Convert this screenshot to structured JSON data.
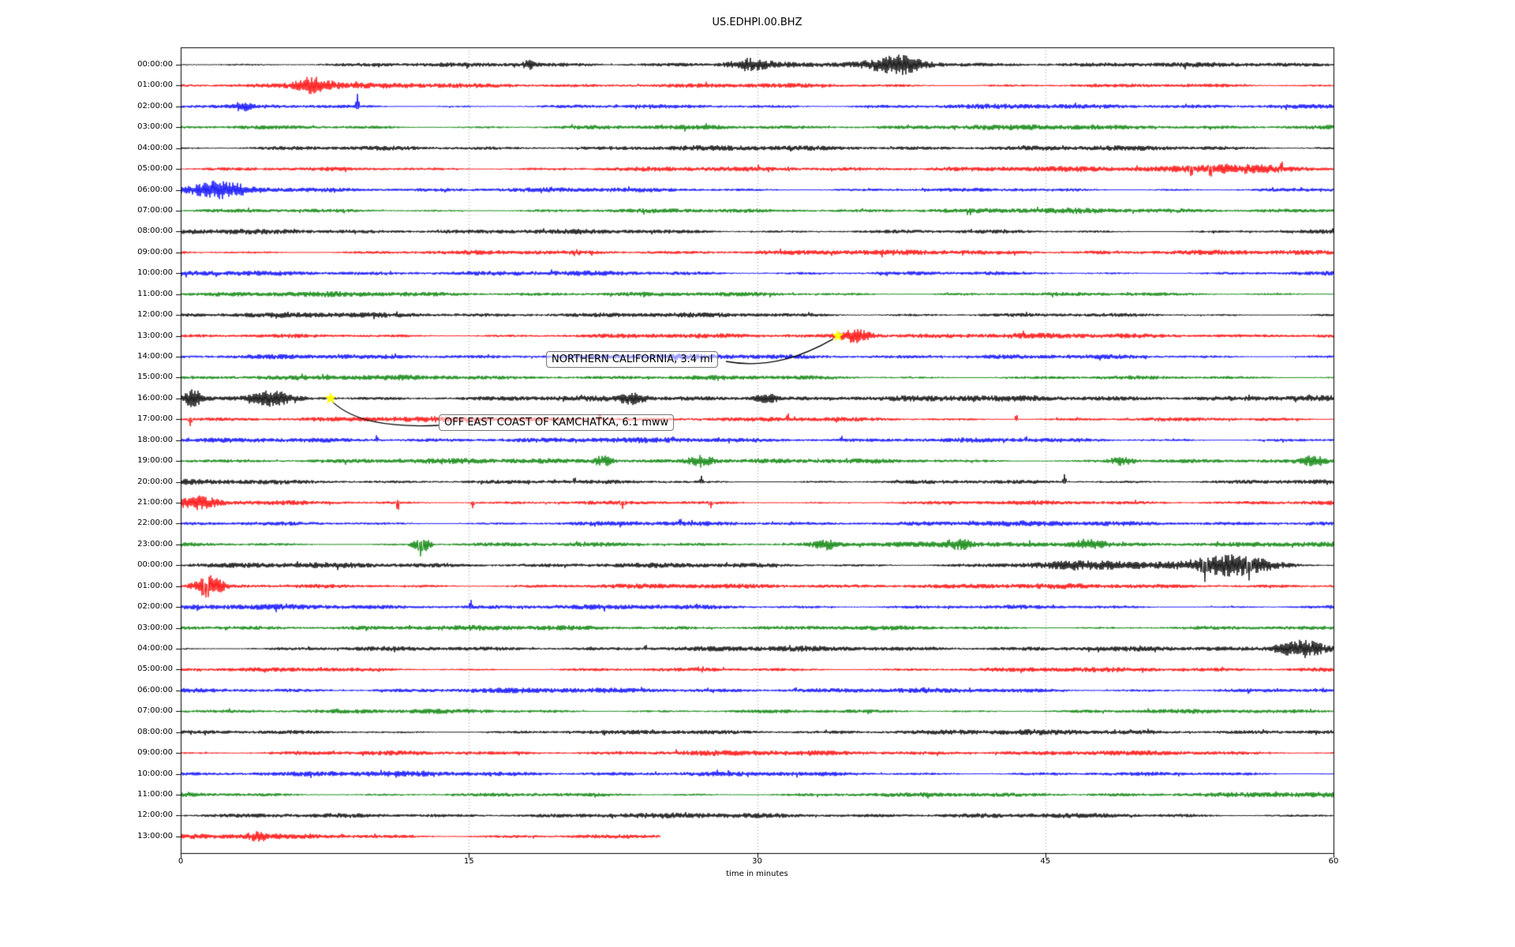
{
  "chart_data": {
    "type": "line",
    "subtype": "seismogram-dayplot",
    "title": "US.EDHPI.00.BHZ",
    "xlabel": "time in minutes",
    "x_ticks": [
      0,
      15,
      30,
      45,
      60
    ],
    "x_tick_labels": [
      "0",
      "15",
      "30",
      "45",
      "60"
    ],
    "x_range_minutes": [
      0,
      60
    ],
    "gridlines_minutes": [
      15,
      30,
      45
    ],
    "grid_style": "dotted-vertical",
    "trace_colors_cycle": [
      "#000000",
      "#ff0000",
      "#0000ff",
      "#008000"
    ],
    "rows": [
      "00:00:00",
      "01:00:00",
      "02:00:00",
      "03:00:00",
      "04:00:00",
      "05:00:00",
      "06:00:00",
      "07:00:00",
      "08:00:00",
      "09:00:00",
      "10:00:00",
      "11:00:00",
      "12:00:00",
      "13:00:00",
      "14:00:00",
      "15:00:00",
      "16:00:00",
      "17:00:00",
      "18:00:00",
      "19:00:00",
      "20:00:00",
      "21:00:00",
      "22:00:00",
      "23:00:00",
      "00:00:00",
      "01:00:00",
      "02:00:00",
      "03:00:00",
      "04:00:00",
      "05:00:00",
      "06:00:00",
      "07:00:00",
      "08:00:00",
      "09:00:00",
      "10:00:00",
      "11:00:00",
      "12:00:00",
      "13:00:00"
    ],
    "last_row_end_minute": 25,
    "events": [
      {
        "label": "NORTHERN CALIFORNIA, 3.4 ml",
        "row_index": 13,
        "row_time": "13:00:00",
        "minute": 34.2,
        "marker": "yellow-star"
      },
      {
        "label": "OFF EAST COAST OF KAMCHATKA, 6.1 mww",
        "row_index": 16,
        "row_time": "16:00:00",
        "minute": 7.8,
        "marker": "yellow-star"
      }
    ],
    "bursts": [
      {
        "row": 0,
        "start": 17.8,
        "end": 18.4,
        "amp": 5
      },
      {
        "row": 0,
        "start": 28.6,
        "end": 30.6,
        "amp": 6
      },
      {
        "row": 0,
        "start": 36.0,
        "end": 38.8,
        "amp": 10
      },
      {
        "row": 1,
        "start": 6.0,
        "end": 8.0,
        "amp": 9
      },
      {
        "row": 2,
        "start": 2.9,
        "end": 3.6,
        "amp": 5
      },
      {
        "row": 5,
        "start": 52.3,
        "end": 57.7,
        "amp": 5
      },
      {
        "row": 6,
        "start": 0.5,
        "end": 3.4,
        "amp": 8
      },
      {
        "row": 13,
        "start": 34.3,
        "end": 36.0,
        "amp": 8
      },
      {
        "row": 16,
        "start": 0.3,
        "end": 1.0,
        "amp": 11
      },
      {
        "row": 16,
        "start": 3.8,
        "end": 5.8,
        "amp": 8
      },
      {
        "row": 16,
        "start": 8.0,
        "end": 60.0,
        "amp": 1.2
      },
      {
        "row": 16,
        "start": 22.8,
        "end": 24.2,
        "amp": 6
      },
      {
        "row": 16,
        "start": 29.8,
        "end": 31.2,
        "amp": 5
      },
      {
        "row": 19,
        "start": 21.5,
        "end": 22.5,
        "amp": 6
      },
      {
        "row": 19,
        "start": 26.4,
        "end": 27.8,
        "amp": 7
      },
      {
        "row": 19,
        "start": 48.3,
        "end": 49.7,
        "amp": 5
      },
      {
        "row": 19,
        "start": 58.3,
        "end": 59.7,
        "amp": 6
      },
      {
        "row": 21,
        "start": 0.0,
        "end": 1.8,
        "amp": 7
      },
      {
        "row": 23,
        "start": 12.1,
        "end": 13.0,
        "amp": 10
      },
      {
        "row": 23,
        "start": 33.0,
        "end": 34.2,
        "amp": 5
      },
      {
        "row": 23,
        "start": 40.0,
        "end": 41.2,
        "amp": 5
      },
      {
        "row": 23,
        "start": 46.3,
        "end": 48.2,
        "amp": 6
      },
      {
        "row": 24,
        "start": 44.0,
        "end": 52.0,
        "amp": 4
      },
      {
        "row": 24,
        "start": 52.6,
        "end": 56.8,
        "amp": 14
      },
      {
        "row": 25,
        "start": 0.7,
        "end": 2.2,
        "amp": 12
      },
      {
        "row": 28,
        "start": 57.0,
        "end": 59.6,
        "amp": 11
      },
      {
        "row": 37,
        "start": 3.5,
        "end": 4.5,
        "amp": 4
      }
    ],
    "spikes": [
      {
        "row": 2,
        "minute": 9.2,
        "amp": 16,
        "dir": 1
      },
      {
        "row": 5,
        "minute": 52.6,
        "amp": 12,
        "dir": -1
      },
      {
        "row": 5,
        "minute": 53.6,
        "amp": 13,
        "dir": -1
      },
      {
        "row": 5,
        "minute": 57.3,
        "amp": 12,
        "dir": 1
      },
      {
        "row": 7,
        "minute": 44.6,
        "amp": 5,
        "dir": 1
      },
      {
        "row": 12,
        "minute": 32.7,
        "amp": 4,
        "dir": 1
      },
      {
        "row": 17,
        "minute": 0.5,
        "amp": 9,
        "dir": -1
      },
      {
        "row": 17,
        "minute": 21.8,
        "amp": 8,
        "dir": 1
      },
      {
        "row": 17,
        "minute": 31.6,
        "amp": 9,
        "dir": 1
      },
      {
        "row": 17,
        "minute": 43.5,
        "amp": 7,
        "dir": 1
      },
      {
        "row": 18,
        "minute": 10.2,
        "amp": 7,
        "dir": 1
      },
      {
        "row": 18,
        "minute": 25.6,
        "amp": 6,
        "dir": 1
      },
      {
        "row": 18,
        "minute": 34.4,
        "amp": 6,
        "dir": 1
      },
      {
        "row": 18,
        "minute": 44.0,
        "amp": 6,
        "dir": 1
      },
      {
        "row": 20,
        "minute": 20.5,
        "amp": 7,
        "dir": 1
      },
      {
        "row": 20,
        "minute": 27.1,
        "amp": 8,
        "dir": 1
      },
      {
        "row": 20,
        "minute": 46.0,
        "amp": 10,
        "dir": 1
      },
      {
        "row": 21,
        "minute": 11.3,
        "amp": 12,
        "dir": -1
      },
      {
        "row": 21,
        "minute": 15.2,
        "amp": 7,
        "dir": -1
      },
      {
        "row": 21,
        "minute": 23.0,
        "amp": 8,
        "dir": -1
      },
      {
        "row": 21,
        "minute": 27.6,
        "amp": 7,
        "dir": -1
      },
      {
        "row": 22,
        "minute": 26.0,
        "amp": 8,
        "dir": 1
      },
      {
        "row": 23,
        "minute": 12.5,
        "amp": 17,
        "dir": -1
      },
      {
        "row": 24,
        "minute": 53.3,
        "amp": 22,
        "dir": -1
      },
      {
        "row": 24,
        "minute": 55.6,
        "amp": 20,
        "dir": -1
      },
      {
        "row": 25,
        "minute": 1.3,
        "amp": 16,
        "dir": -1
      },
      {
        "row": 26,
        "minute": 15.1,
        "amp": 10,
        "dir": 1
      },
      {
        "row": 28,
        "minute": 24.2,
        "amp": 6,
        "dir": 1
      },
      {
        "row": 30,
        "minute": 32.0,
        "amp": 5,
        "dir": 1
      },
      {
        "row": 33,
        "minute": 25.8,
        "amp": 5,
        "dir": 1
      }
    ]
  },
  "colors": {
    "grid": "#999999",
    "axis": "#000000",
    "star_fill": "#ffff00",
    "annotation_border": "#777777",
    "annotation_bg": "rgba(255,255,255,0.55)"
  }
}
